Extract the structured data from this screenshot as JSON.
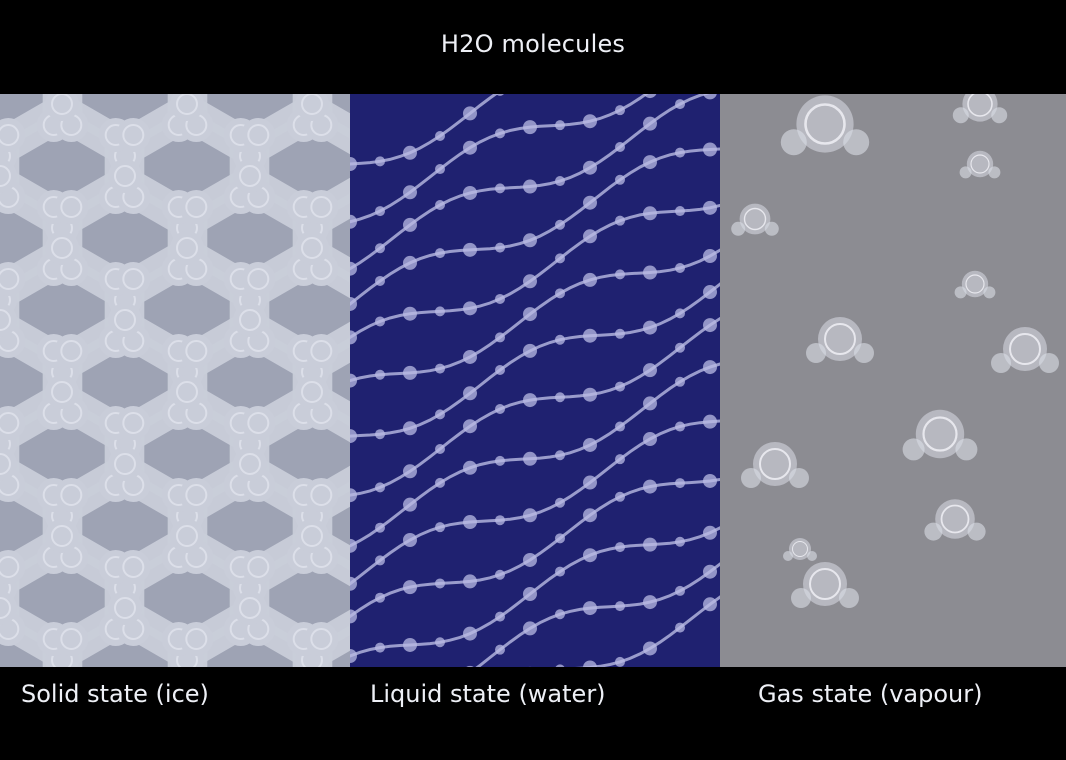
{
  "title": "H2O molecules",
  "panels": [
    {
      "id": "solid",
      "caption": "Solid state (ice)",
      "background": "#9ea3b4",
      "molecule_color": "#c9cdd9"
    },
    {
      "id": "liquid",
      "caption": "Liquid state (water)",
      "background": "#1f2170",
      "molecule_color": "#b9bbe4"
    },
    {
      "id": "gas",
      "caption": "Gas state (vapour)",
      "background": "#8c8c92",
      "molecule_color": "#dadde6"
    }
  ]
}
